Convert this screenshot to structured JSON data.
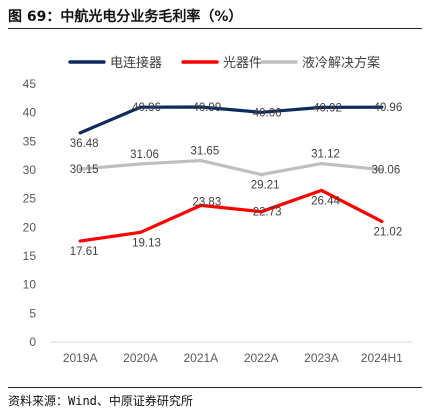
{
  "figure": {
    "title": "图 69：中航光电分业务毛利率（%）",
    "source": "资料来源：Wind、中原证券研究所"
  },
  "chart_data": {
    "type": "line",
    "categories": [
      "2019A",
      "2020A",
      "2021A",
      "2022A",
      "2023A",
      "2024H1"
    ],
    "ylim": [
      0,
      45
    ],
    "yticks": [
      0,
      5,
      10,
      15,
      20,
      25,
      30,
      35,
      40,
      45
    ],
    "grid": false,
    "legend_position": "top",
    "series": [
      {
        "name": "电连接器",
        "color": "#0f2a5e",
        "values": [
          36.48,
          40.96,
          40.99,
          40.06,
          40.92,
          40.96
        ]
      },
      {
        "name": "光器件",
        "color": "#ff0000",
        "values": [
          17.61,
          19.13,
          23.83,
          22.73,
          26.44,
          21.02
        ]
      },
      {
        "name": "液冷解决方案",
        "color": "#bfbfbf",
        "values": [
          30.15,
          31.06,
          31.65,
          29.21,
          31.12,
          30.06
        ]
      }
    ]
  }
}
